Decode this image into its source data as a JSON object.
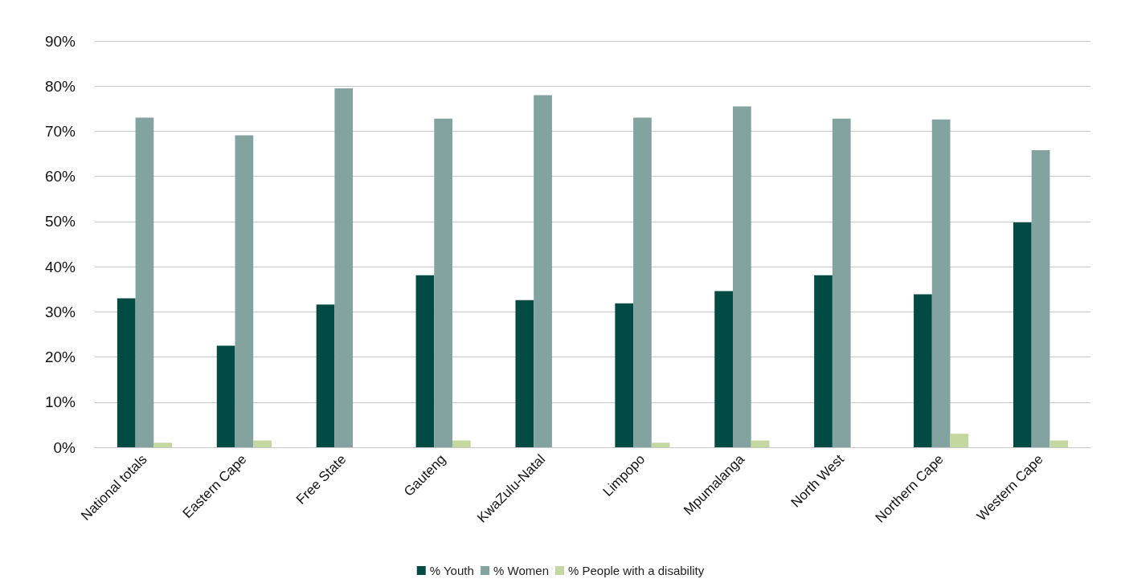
{
  "chart_data": {
    "type": "bar",
    "categories": [
      "National totals",
      "Eastern Cape",
      "Free State",
      "Gauteng",
      "KwaZulu-Natal",
      "Limpopo",
      "Mpumalanga",
      "North West",
      "Northern Cape",
      "Western Cape"
    ],
    "series": [
      {
        "name": "% Youth",
        "color": "#024b45",
        "values": [
          33,
          22.5,
          31.6,
          38.1,
          32.6,
          31.9,
          34.6,
          38.1,
          33.9,
          49.8
        ]
      },
      {
        "name": "% Women",
        "color": "#82a3a0",
        "values": [
          73,
          69.1,
          79.5,
          72.8,
          78,
          73,
          75.5,
          72.8,
          72.6,
          65.8
        ]
      },
      {
        "name": "% People with a disability",
        "color": "#c4d79f",
        "values": [
          1,
          1.5,
          0,
          1.5,
          0,
          1,
          1.5,
          0,
          3,
          1.5
        ]
      }
    ],
    "ylim": [
      0,
      90
    ],
    "yticks": [
      {
        "value": 0,
        "label": "0%"
      },
      {
        "value": 10,
        "label": "10%"
      },
      {
        "value": 20,
        "label": "20%"
      },
      {
        "value": 30,
        "label": "30%"
      },
      {
        "value": 40,
        "label": "40%"
      },
      {
        "value": 50,
        "label": "50%"
      },
      {
        "value": 60,
        "label": "60%"
      },
      {
        "value": 70,
        "label": "70%"
      },
      {
        "value": 80,
        "label": "80%"
      },
      {
        "value": 90,
        "label": "90%"
      }
    ],
    "grid": "y",
    "legend": "bottom"
  }
}
